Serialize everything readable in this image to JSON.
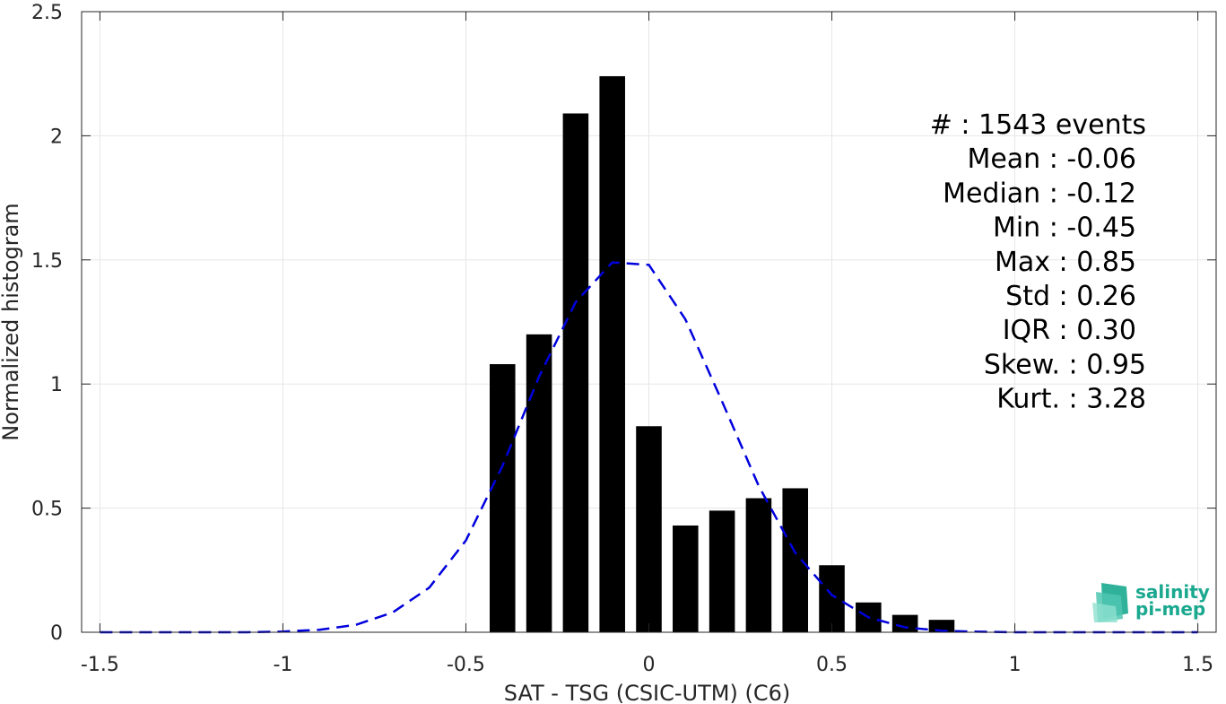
{
  "chart_data": {
    "type": "bar",
    "xlabel": "SAT - TSG (CSIC-UTM) (C6)",
    "ylabel": "Normalized histogram",
    "xlim": [
      -1.55,
      1.55
    ],
    "ylim": [
      0,
      2.5
    ],
    "xticks": [
      -1.5,
      -1,
      -0.5,
      0,
      0.5,
      1,
      1.5
    ],
    "xtick_labels": [
      "-1.5",
      "-1",
      "-0.5",
      "0",
      "0.5",
      "1",
      "1.5"
    ],
    "yticks": [
      0,
      0.5,
      1,
      1.5,
      2,
      2.5
    ],
    "ytick_labels": [
      "0",
      "0.5",
      "1",
      "1.5",
      "2",
      "2.5"
    ],
    "grid": true,
    "bar_color": "#000000",
    "bars": {
      "centers": [
        -0.4,
        -0.3,
        -0.2,
        -0.1,
        0.0,
        0.1,
        0.2,
        0.3,
        0.4,
        0.5,
        0.6,
        0.7,
        0.8
      ],
      "values": [
        1.08,
        1.2,
        2.09,
        2.24,
        0.83,
        0.43,
        0.49,
        0.54,
        0.58,
        0.27,
        0.12,
        0.07,
        0.05
      ],
      "width": 0.07
    },
    "series": [
      {
        "style": "dashed",
        "color": "#0000dd",
        "x": [
          -1.5,
          -1.4,
          -1.3,
          -1.2,
          -1.1,
          -1.0,
          -0.9,
          -0.8,
          -0.7,
          -0.6,
          -0.5,
          -0.4,
          -0.3,
          -0.2,
          -0.1,
          0.0,
          0.1,
          0.2,
          0.3,
          0.4,
          0.5,
          0.6,
          0.7,
          0.8,
          0.9,
          1.0,
          1.1,
          1.2,
          1.3,
          1.4,
          1.5
        ],
        "y": [
          0.0,
          0.0,
          0.0,
          0.0,
          0.0,
          0.003,
          0.01,
          0.03,
          0.08,
          0.18,
          0.37,
          0.67,
          1.03,
          1.33,
          1.49,
          1.48,
          1.26,
          0.93,
          0.59,
          0.32,
          0.15,
          0.06,
          0.02,
          0.006,
          0.002,
          0.0,
          0.0,
          0.0,
          0.0,
          0.0,
          0.0
        ]
      }
    ],
    "annotations": [
      "#  : 1543 events",
      "Mean : -0.06",
      "Median : -0.12",
      "Min : -0.45",
      "Max : 0.85",
      "Std : 0.26",
      "IQR : 0.30",
      "Skew. : 0.95",
      "Kurt. : 3.28"
    ]
  },
  "logo": {
    "line1": "salinity",
    "line2": "pi-mep",
    "color": "#1aa88f"
  }
}
